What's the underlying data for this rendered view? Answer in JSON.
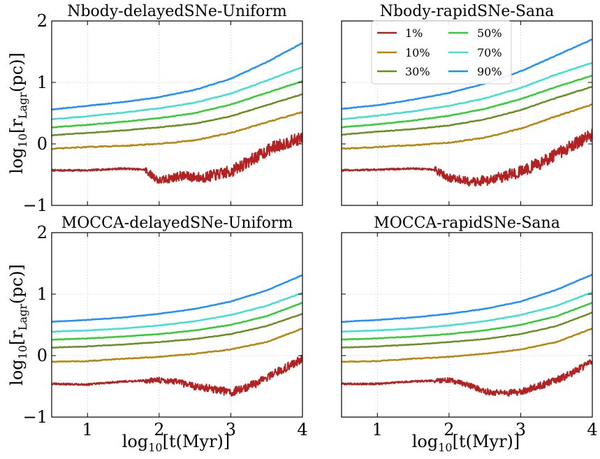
{
  "figure": {
    "ylabel_main": "log",
    "ylabel_sub": "10",
    "ylabel_rest": "[r",
    "ylabel_rsub": "Lagr",
    "ylabel_end": "(pc)]",
    "xlabel_main": "log",
    "xlabel_sub": "10",
    "xlabel_rest": "[t(Myr)]"
  },
  "legend": {
    "entries": [
      {
        "label": "1%",
        "color": "#b22222"
      },
      {
        "label": "10%",
        "color": "#b8860b"
      },
      {
        "label": "30%",
        "color": "#6b8e23"
      },
      {
        "label": "50%",
        "color": "#32cd32"
      },
      {
        "label": "70%",
        "color": "#40e0d0"
      },
      {
        "label": "90%",
        "color": "#1e90ff"
      }
    ]
  },
  "chart_data": [
    {
      "type": "line",
      "title": "Nbody-delayedSNe-Uniform",
      "xlim": [
        0.5,
        4.0
      ],
      "ylim": [
        -1,
        2
      ],
      "xticks": [
        1,
        2,
        3,
        4
      ],
      "yticks": [
        -1,
        0,
        1,
        2
      ],
      "xtick_labels": [
        "1",
        "2",
        "3",
        "4"
      ],
      "ytick_labels": [
        "−1",
        "0",
        "1",
        "2"
      ],
      "show_xticklabels": false,
      "show_yticklabels": true,
      "series": [
        {
          "name": "1%",
          "noise": 0.1,
          "x": [
            0.5,
            1.0,
            1.5,
            1.8,
            2.0,
            2.3,
            2.6,
            3.0,
            3.3,
            3.6,
            4.0
          ],
          "y": [
            -0.43,
            -0.43,
            -0.4,
            -0.42,
            -0.6,
            -0.52,
            -0.55,
            -0.45,
            -0.25,
            -0.05,
            0.1
          ]
        },
        {
          "name": "10%",
          "noise": 0.008,
          "x": [
            0.5,
            1.0,
            1.5,
            2.0,
            2.5,
            3.0,
            3.5,
            4.0
          ],
          "y": [
            -0.08,
            -0.05,
            -0.03,
            0.0,
            0.06,
            0.18,
            0.35,
            0.52
          ]
        },
        {
          "name": "30%",
          "noise": 0.005,
          "x": [
            0.5,
            1.0,
            1.5,
            2.0,
            2.5,
            3.0,
            3.5,
            4.0
          ],
          "y": [
            0.14,
            0.18,
            0.22,
            0.27,
            0.33,
            0.45,
            0.63,
            0.81
          ]
        },
        {
          "name": "50%",
          "noise": 0.005,
          "x": [
            0.5,
            1.0,
            1.5,
            2.0,
            2.5,
            3.0,
            3.5,
            4.0
          ],
          "y": [
            0.27,
            0.31,
            0.36,
            0.42,
            0.5,
            0.64,
            0.83,
            1.02
          ]
        },
        {
          "name": "70%",
          "noise": 0.005,
          "x": [
            0.5,
            1.0,
            1.5,
            2.0,
            2.5,
            3.0,
            3.5,
            4.0
          ],
          "y": [
            0.4,
            0.45,
            0.51,
            0.58,
            0.67,
            0.82,
            1.03,
            1.25
          ]
        },
        {
          "name": "90%",
          "noise": 0.005,
          "x": [
            0.5,
            1.0,
            1.5,
            2.0,
            2.5,
            3.0,
            3.5,
            4.0
          ],
          "y": [
            0.56,
            0.62,
            0.68,
            0.76,
            0.88,
            1.06,
            1.33,
            1.64
          ]
        }
      ]
    },
    {
      "type": "line",
      "title": "Nbody-rapidSNe-Sana",
      "xlim": [
        0.5,
        4.0
      ],
      "ylim": [
        -1,
        2
      ],
      "xticks": [
        1,
        2,
        3,
        4
      ],
      "yticks": [
        -1,
        0,
        1,
        2
      ],
      "xtick_labels": [
        "1",
        "2",
        "3",
        "4"
      ],
      "ytick_labels": [
        "−1",
        "0",
        "1",
        "2"
      ],
      "show_xticklabels": false,
      "show_yticklabels": false,
      "series": [
        {
          "name": "1%",
          "noise": 0.1,
          "x": [
            0.5,
            1.0,
            1.5,
            1.8,
            2.0,
            2.3,
            2.6,
            3.0,
            3.3,
            3.6,
            4.0
          ],
          "y": [
            -0.43,
            -0.42,
            -0.4,
            -0.42,
            -0.55,
            -0.62,
            -0.58,
            -0.45,
            -0.3,
            -0.1,
            0.15
          ]
        },
        {
          "name": "10%",
          "noise": 0.008,
          "x": [
            0.5,
            1.0,
            1.5,
            2.0,
            2.5,
            3.0,
            3.5,
            4.0
          ],
          "y": [
            -0.08,
            -0.05,
            -0.02,
            0.02,
            0.1,
            0.25,
            0.45,
            0.64
          ]
        },
        {
          "name": "30%",
          "noise": 0.005,
          "x": [
            0.5,
            1.0,
            1.5,
            2.0,
            2.5,
            3.0,
            3.5,
            4.0
          ],
          "y": [
            0.15,
            0.2,
            0.24,
            0.3,
            0.4,
            0.55,
            0.75,
            0.93
          ]
        },
        {
          "name": "50%",
          "noise": 0.005,
          "x": [
            0.5,
            1.0,
            1.5,
            2.0,
            2.5,
            3.0,
            3.5,
            4.0
          ],
          "y": [
            0.27,
            0.32,
            0.38,
            0.46,
            0.57,
            0.73,
            0.93,
            1.11
          ]
        },
        {
          "name": "70%",
          "noise": 0.005,
          "x": [
            0.5,
            1.0,
            1.5,
            2.0,
            2.5,
            3.0,
            3.5,
            4.0
          ],
          "y": [
            0.4,
            0.46,
            0.53,
            0.62,
            0.74,
            0.91,
            1.13,
            1.32
          ]
        },
        {
          "name": "90%",
          "noise": 0.005,
          "x": [
            0.5,
            1.0,
            1.5,
            2.0,
            2.5,
            3.0,
            3.5,
            4.0
          ],
          "y": [
            0.57,
            0.63,
            0.72,
            0.83,
            0.98,
            1.18,
            1.44,
            1.7
          ]
        }
      ]
    },
    {
      "type": "line",
      "title": "MOCCA-delayedSNe-Uniform",
      "xlim": [
        0.5,
        4.0
      ],
      "ylim": [
        -1,
        2
      ],
      "xticks": [
        1,
        2,
        3,
        4
      ],
      "yticks": [
        -1,
        0,
        1,
        2
      ],
      "xtick_labels": [
        "1",
        "2",
        "3",
        "4"
      ],
      "ytick_labels": [
        "−1",
        "0",
        "1",
        "2"
      ],
      "show_xticklabels": true,
      "show_yticklabels": true,
      "series": [
        {
          "name": "1%",
          "noise": 0.07,
          "x": [
            0.5,
            1.0,
            1.5,
            2.0,
            2.2,
            2.5,
            2.8,
            3.0,
            3.3,
            3.6,
            4.0
          ],
          "y": [
            -0.46,
            -0.47,
            -0.42,
            -0.4,
            -0.42,
            -0.5,
            -0.55,
            -0.6,
            -0.48,
            -0.3,
            -0.05
          ]
        },
        {
          "name": "10%",
          "noise": 0.006,
          "x": [
            0.5,
            1.0,
            1.5,
            2.0,
            2.5,
            3.0,
            3.5,
            4.0
          ],
          "y": [
            -0.1,
            -0.09,
            -0.05,
            -0.02,
            0.03,
            0.1,
            0.22,
            0.44
          ]
        },
        {
          "name": "30%",
          "noise": 0.004,
          "x": [
            0.5,
            1.0,
            1.5,
            2.0,
            2.5,
            3.0,
            3.5,
            4.0
          ],
          "y": [
            0.13,
            0.15,
            0.18,
            0.22,
            0.27,
            0.35,
            0.48,
            0.68
          ]
        },
        {
          "name": "50%",
          "noise": 0.004,
          "x": [
            0.5,
            1.0,
            1.5,
            2.0,
            2.5,
            3.0,
            3.5,
            4.0
          ],
          "y": [
            0.26,
            0.28,
            0.31,
            0.35,
            0.41,
            0.5,
            0.64,
            0.86
          ]
        },
        {
          "name": "70%",
          "noise": 0.004,
          "x": [
            0.5,
            1.0,
            1.5,
            2.0,
            2.5,
            3.0,
            3.5,
            4.0
          ],
          "y": [
            0.39,
            0.41,
            0.44,
            0.49,
            0.56,
            0.66,
            0.81,
            1.02
          ]
        },
        {
          "name": "90%",
          "noise": 0.004,
          "x": [
            0.5,
            1.0,
            1.5,
            2.0,
            2.5,
            3.0,
            3.5,
            4.0
          ],
          "y": [
            0.55,
            0.58,
            0.62,
            0.68,
            0.76,
            0.88,
            1.06,
            1.31
          ]
        }
      ]
    },
    {
      "type": "line",
      "title": "MOCCA-rapidSNe-Sana",
      "xlim": [
        0.5,
        4.0
      ],
      "ylim": [
        -1,
        2
      ],
      "xticks": [
        1,
        2,
        3,
        4
      ],
      "yticks": [
        -1,
        0,
        1,
        2
      ],
      "xtick_labels": [
        "1",
        "2",
        "3",
        "4"
      ],
      "ytick_labels": [
        "−1",
        "0",
        "1",
        "2"
      ],
      "show_xticklabels": true,
      "show_yticklabels": false,
      "series": [
        {
          "name": "1%",
          "noise": 0.06,
          "x": [
            0.5,
            1.0,
            1.5,
            2.0,
            2.2,
            2.5,
            2.8,
            3.0,
            3.3,
            3.6,
            4.0
          ],
          "y": [
            -0.46,
            -0.46,
            -0.42,
            -0.4,
            -0.45,
            -0.58,
            -0.62,
            -0.58,
            -0.48,
            -0.35,
            -0.1
          ]
        },
        {
          "name": "10%",
          "noise": 0.006,
          "x": [
            0.5,
            1.0,
            1.5,
            2.0,
            2.5,
            3.0,
            3.5,
            4.0
          ],
          "y": [
            -0.1,
            -0.09,
            -0.05,
            -0.02,
            0.03,
            0.1,
            0.22,
            0.44
          ]
        },
        {
          "name": "30%",
          "noise": 0.004,
          "x": [
            0.5,
            1.0,
            1.5,
            2.0,
            2.5,
            3.0,
            3.5,
            4.0
          ],
          "y": [
            0.13,
            0.15,
            0.18,
            0.22,
            0.27,
            0.35,
            0.48,
            0.7
          ]
        },
        {
          "name": "50%",
          "noise": 0.004,
          "x": [
            0.5,
            1.0,
            1.5,
            2.0,
            2.5,
            3.0,
            3.5,
            4.0
          ],
          "y": [
            0.26,
            0.28,
            0.31,
            0.35,
            0.41,
            0.5,
            0.64,
            0.86
          ]
        },
        {
          "name": "70%",
          "noise": 0.004,
          "x": [
            0.5,
            1.0,
            1.5,
            2.0,
            2.5,
            3.0,
            3.5,
            4.0
          ],
          "y": [
            0.39,
            0.41,
            0.44,
            0.49,
            0.56,
            0.66,
            0.81,
            1.03
          ]
        },
        {
          "name": "90%",
          "noise": 0.004,
          "x": [
            0.5,
            1.0,
            1.5,
            2.0,
            2.5,
            3.0,
            3.5,
            4.0
          ],
          "y": [
            0.55,
            0.58,
            0.62,
            0.68,
            0.76,
            0.88,
            1.07,
            1.32
          ]
        }
      ]
    }
  ]
}
